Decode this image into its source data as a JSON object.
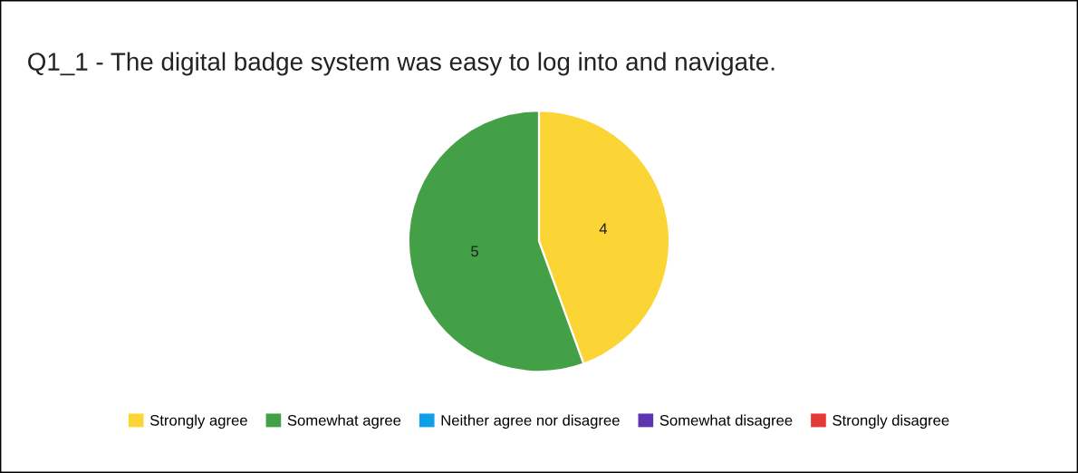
{
  "chart_data": {
    "type": "pie",
    "title": "Q1_1 - The digital badge system was easy to log into and navigate.",
    "categories": [
      "Strongly agree",
      "Somewhat agree",
      "Neither agree nor disagree",
      "Somewhat disagree",
      "Strongly disagree"
    ],
    "values": [
      4,
      5,
      0,
      0,
      0
    ],
    "colors": [
      "#fbd535",
      "#43a047",
      "#0f9ee8",
      "#5e35b1",
      "#e53935"
    ],
    "value_labels": [
      "4",
      "5",
      null,
      null,
      null
    ],
    "legend": "bottom"
  }
}
